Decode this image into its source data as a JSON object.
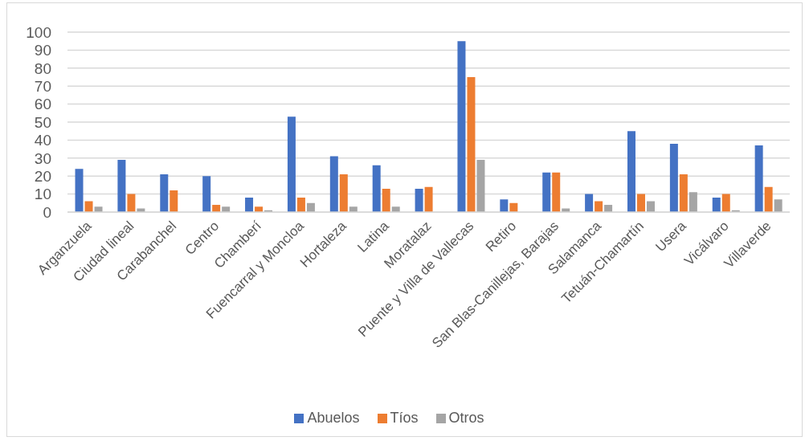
{
  "chart_data": {
    "type": "bar",
    "categories": [
      "Arganzuela",
      "Ciudad lineal",
      "Carabanchel",
      "Centro",
      "Chamberí",
      "Fuencarral y Moncloa",
      "Hortaleza",
      "Latina",
      "Moratalaz",
      "Puente y Villa de Vallecas",
      "Retiro",
      "San Blas-Canillejas, Barajas",
      "Salamanca",
      "Tetuán-Chamartín",
      "Usera",
      "Vicálvaro",
      "Villaverde"
    ],
    "series": [
      {
        "name": "Abuelos",
        "color": "#4472c4",
        "values": [
          24,
          29,
          21,
          20,
          8,
          53,
          31,
          26,
          13,
          95,
          7,
          22,
          10,
          45,
          38,
          8,
          37
        ]
      },
      {
        "name": "Tíos",
        "color": "#ed7d31",
        "values": [
          6,
          10,
          12,
          4,
          3,
          8,
          21,
          13,
          14,
          75,
          5,
          22,
          6,
          10,
          21,
          10,
          14
        ]
      },
      {
        "name": "Otros",
        "color": "#a5a5a5",
        "values": [
          3,
          2,
          0,
          3,
          1,
          5,
          3,
          3,
          0,
          29,
          0,
          2,
          4,
          6,
          11,
          1,
          7
        ]
      }
    ],
    "ylim": [
      0,
      100
    ],
    "yticks": [
      0,
      10,
      20,
      30,
      40,
      50,
      60,
      70,
      80,
      90,
      100
    ],
    "grid": "y",
    "legend": "bottom"
  }
}
